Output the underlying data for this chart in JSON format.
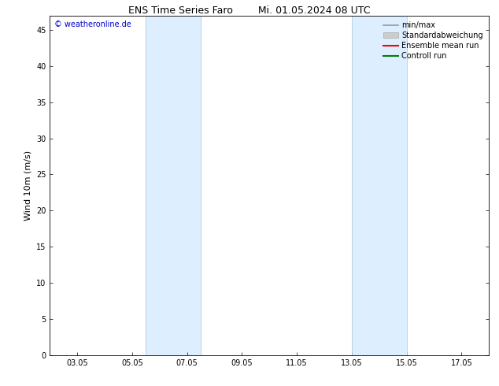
{
  "title_left": "ENS Time Series Faro",
  "title_right": "Mi. 01.05.2024 08 UTC",
  "ylabel": "Wind 10m (m/s)",
  "xtick_labels": [
    "03.05",
    "05.05",
    "07.05",
    "09.05",
    "11.05",
    "13.05",
    "15.05",
    "17.05"
  ],
  "xtick_positions": [
    1,
    3,
    5,
    7,
    9,
    11,
    13,
    15
  ],
  "xlim": [
    0,
    16
  ],
  "ylim": [
    0,
    47
  ],
  "ytick_positions": [
    0,
    5,
    10,
    15,
    20,
    25,
    30,
    35,
    40,
    45
  ],
  "shaded_bands": [
    {
      "x_start": 3.5,
      "x_end": 5.5
    },
    {
      "x_start": 11.0,
      "x_end": 13.0
    }
  ],
  "shaded_color": "#ddeeff",
  "shaded_edge_color": "#b0cce0",
  "background_color": "#ffffff",
  "watermark_text": "© weatheronline.de",
  "watermark_color": "#0000cc",
  "legend_entries": [
    {
      "label": "min/max",
      "color": "#999999",
      "lw": 1.2
    },
    {
      "label": "Standardabweichung",
      "color": "#cccccc",
      "lw": 5
    },
    {
      "label": "Ensemble mean run",
      "color": "#ff0000",
      "lw": 1.5
    },
    {
      "label": "Controll run",
      "color": "#008000",
      "lw": 1.5
    }
  ],
  "title_fontsize": 9,
  "axis_fontsize": 8,
  "tick_fontsize": 7,
  "legend_fontsize": 7
}
